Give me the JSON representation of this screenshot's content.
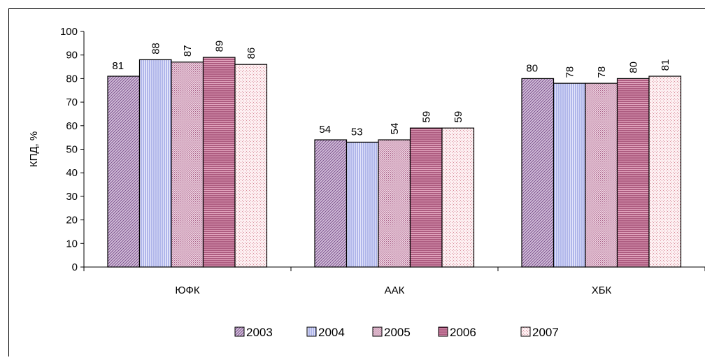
{
  "chart_data": {
    "type": "bar",
    "title": "",
    "xlabel": "",
    "ylabel": "КПД, %",
    "ylim": [
      0,
      100
    ],
    "yticks": [
      0,
      10,
      20,
      30,
      40,
      50,
      60,
      70,
      80,
      90,
      100
    ],
    "categories": [
      "ЮФК",
      "ААК",
      "ХБК"
    ],
    "series": [
      {
        "name": "2003",
        "values": [
          81,
          54,
          80
        ],
        "color": "#b9a0c4",
        "pattern": "diag-right"
      },
      {
        "name": "2004",
        "values": [
          88,
          53,
          78
        ],
        "color": "#c9cdf4",
        "pattern": "vertical"
      },
      {
        "name": "2005",
        "values": [
          87,
          54,
          78
        ],
        "color": "#e3bcd2",
        "pattern": "dots"
      },
      {
        "name": "2006",
        "values": [
          89,
          59,
          80
        ],
        "color": "#c77a9c",
        "pattern": "horizontal"
      },
      {
        "name": "2007",
        "values": [
          86,
          59,
          81
        ],
        "color": "#fbe0e4",
        "pattern": "fine-dots"
      }
    ],
    "data_labels": [
      [
        "81",
        "88",
        "87",
        "89",
        "86"
      ],
      [
        "54",
        "53",
        "54",
        "59",
        "59"
      ],
      [
        "80",
        "78",
        "78",
        "80",
        "81"
      ]
    ],
    "legend_position": "bottom",
    "grid": false
  }
}
